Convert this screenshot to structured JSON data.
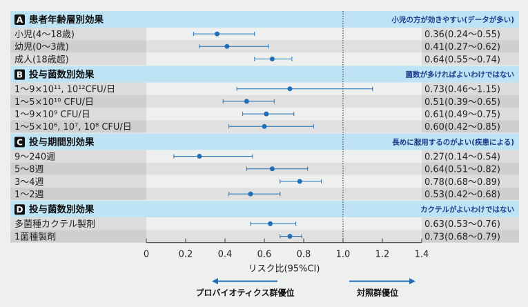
{
  "chart_data": {
    "type": "forest",
    "xlabel": "リスク比(95%CI)",
    "xlim": [
      0,
      1.4
    ],
    "xticks": [
      "0",
      "0.2",
      "0.4",
      "0.6",
      "0.8",
      "1.0",
      "1.2",
      "1.4"
    ],
    "reference_line": 1.0,
    "colors": {
      "point": "#1f6fb8",
      "header_bg": "#bde3f5",
      "subtitle": "#1c3a8c",
      "arrow": "#1f6fb8"
    },
    "groups": [
      {
        "letter": "A",
        "title": "患者年齢層別効果",
        "note": "小児の方が効きやすい(データが多い)",
        "rows": [
          {
            "label": "小児(4〜18歳)",
            "rr": 0.36,
            "lo": 0.24,
            "hi": 0.55,
            "text": "0.36(0.24〜0.55)"
          },
          {
            "label": "幼児(0〜3歳)",
            "rr": 0.41,
            "lo": 0.27,
            "hi": 0.62,
            "text": "0.41(0.27〜0.62)"
          },
          {
            "label": "成人(18歳超)",
            "rr": 0.64,
            "lo": 0.55,
            "hi": 0.74,
            "text": "0.64(0.55〜0.74)"
          }
        ]
      },
      {
        "letter": "B",
        "title": "投与菌数別効果",
        "note": "菌数が多ければよいわけではない",
        "rows": [
          {
            "label": "1〜9×10¹¹, 10¹²CFU/日",
            "rr": 0.73,
            "lo": 0.46,
            "hi": 1.15,
            "text": "0.73(0.46〜1.15)"
          },
          {
            "label": "1〜5×10¹⁰ CFU/日",
            "rr": 0.51,
            "lo": 0.39,
            "hi": 0.65,
            "text": "0.51(0.39〜0.65)"
          },
          {
            "label": "1〜9×10⁹ CFU/日",
            "rr": 0.61,
            "lo": 0.49,
            "hi": 0.75,
            "text": "0.61(0.49〜0.75)"
          },
          {
            "label": "1〜5×10⁶, 10⁷, 10⁸ CFU/日",
            "rr": 0.6,
            "lo": 0.42,
            "hi": 0.85,
            "text": "0.60(0.42〜0.85)"
          }
        ]
      },
      {
        "letter": "C",
        "title": "投与期間別効果",
        "note": "長めに服用するのがよい(疾患による)",
        "rows": [
          {
            "label": "9〜240週",
            "rr": 0.27,
            "lo": 0.14,
            "hi": 0.54,
            "text": "0.27(0.14〜0.54)"
          },
          {
            "label": "5〜8週",
            "rr": 0.64,
            "lo": 0.51,
            "hi": 0.82,
            "text": "0.64(0.51〜0.82)"
          },
          {
            "label": "3〜4週",
            "rr": 0.78,
            "lo": 0.68,
            "hi": 0.89,
            "text": "0.78(0.68〜0.89)"
          },
          {
            "label": "1〜2週",
            "rr": 0.53,
            "lo": 0.42,
            "hi": 0.68,
            "text": "0.53(0.42〜0.68)"
          }
        ]
      },
      {
        "letter": "D",
        "title": "投与菌数別効果",
        "note": "カクテルがよいわけではない",
        "rows": [
          {
            "label": "多菌種カクテル製剤",
            "rr": 0.63,
            "lo": 0.53,
            "hi": 0.76,
            "text": "0.63(0.53〜0.76)"
          },
          {
            "label": "1菌種製剤",
            "rr": 0.73,
            "lo": 0.68,
            "hi": 0.79,
            "text": "0.73(0.68〜0.79)"
          }
        ]
      }
    ],
    "favors_left": "プロバイオティクス群優位",
    "favors_right": "対照群優位"
  }
}
